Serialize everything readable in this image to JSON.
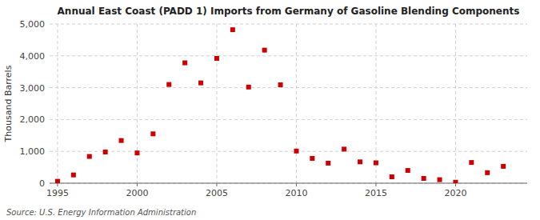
{
  "chart_data": {
    "type": "scatter",
    "title": "Annual East Coast (PADD 1) Imports from Germany of Gasoline Blending Components",
    "y_label": "Thousand Barrels",
    "annotations": [
      "Source: U.S. Energy Information Administration"
    ],
    "x": [
      1995,
      1996,
      1997,
      1998,
      1999,
      2000,
      2001,
      2002,
      2003,
      2004,
      2005,
      2006,
      2007,
      2008,
      2009,
      2010,
      2011,
      2012,
      2013,
      2014,
      2015,
      2016,
      2017,
      2018,
      2019,
      2020,
      2021,
      2022,
      2023
    ],
    "values": [
      60,
      260,
      840,
      980,
      1340,
      950,
      1550,
      3100,
      3780,
      3150,
      3920,
      4820,
      3020,
      4180,
      3090,
      1010,
      780,
      630,
      1070,
      670,
      640,
      200,
      400,
      150,
      110,
      30,
      650,
      330,
      530
    ],
    "color": "#cc0000",
    "marker": "square",
    "xlim": [
      1994.5,
      2024.5
    ],
    "ylim": [
      0,
      5000
    ],
    "xticks": [
      1995,
      2000,
      2005,
      2010,
      2015,
      2020
    ],
    "yticks": [
      0,
      {
        "value": 1000,
        "label": "1,000"
      },
      {
        "value": 2000,
        "label": "2,000"
      },
      {
        "value": 3000,
        "label": "3,000"
      },
      {
        "value": 4000,
        "label": "4,000"
      },
      {
        "value": 5000,
        "label": "5,000"
      }
    ],
    "grid": true
  }
}
